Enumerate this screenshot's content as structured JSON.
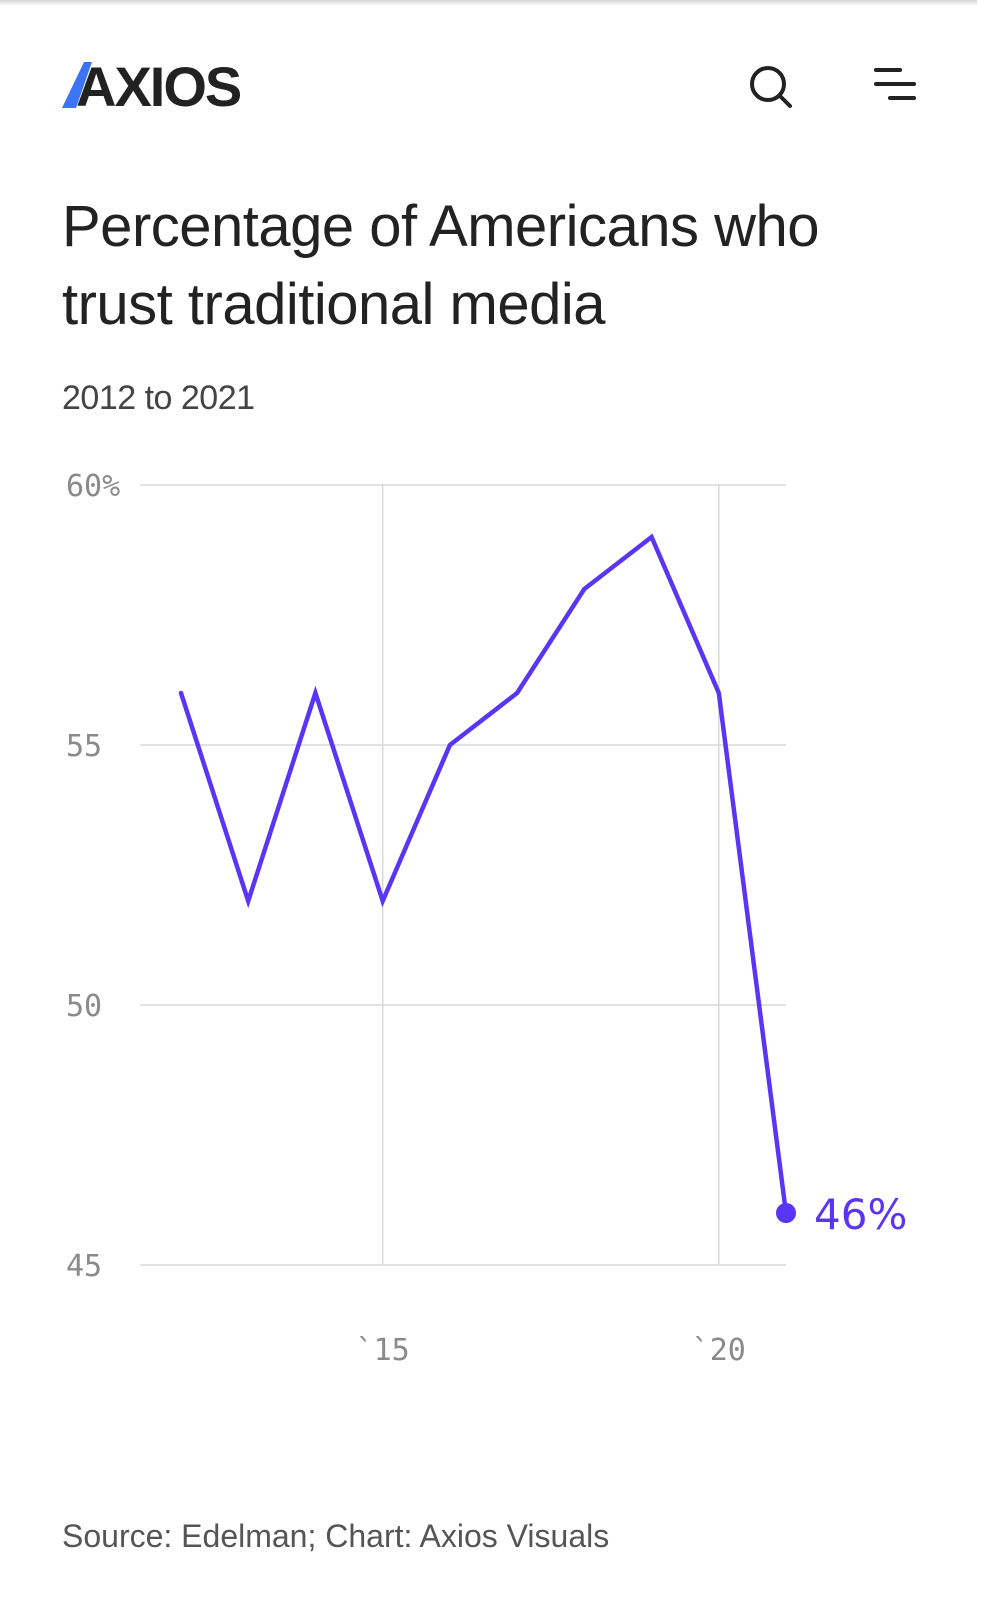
{
  "header": {
    "logo_text": "AXIOS",
    "search_icon": "search-icon",
    "menu_icon": "menu-icon"
  },
  "title": "Percentage of Americans who trust traditional media",
  "subtitle": "2012 to 2021",
  "source": "Source: Edelman; Chart: Axios Visuals",
  "colors": {
    "accent": "#5b35f5",
    "brand_blue": "#3d74f6",
    "grid": "#d9d9d9",
    "tick": "#8a8a8a",
    "text": "#222222"
  },
  "chart_data": {
    "type": "line",
    "title": "Percentage of Americans who trust traditional media",
    "subtitle": "2012 to 2021",
    "x": [
      2012,
      2013,
      2014,
      2015,
      2016,
      2017,
      2018,
      2019,
      2020,
      2021
    ],
    "series": [
      {
        "values": [
          56,
          52,
          56,
          52,
          55,
          56,
          58,
          59,
          56,
          46
        ]
      }
    ],
    "ylim": [
      45,
      60
    ],
    "xlim": [
      2012,
      2021
    ],
    "y_ticks": [
      {
        "value": 60,
        "label": "60%"
      },
      {
        "value": 55,
        "label": "55"
      },
      {
        "value": 50,
        "label": "50"
      },
      {
        "value": 45,
        "label": "45"
      }
    ],
    "x_ticks": [
      {
        "value": 2015,
        "label": "`15"
      },
      {
        "value": 2020,
        "label": "`20"
      }
    ],
    "end_label": "46%",
    "grid": true
  }
}
